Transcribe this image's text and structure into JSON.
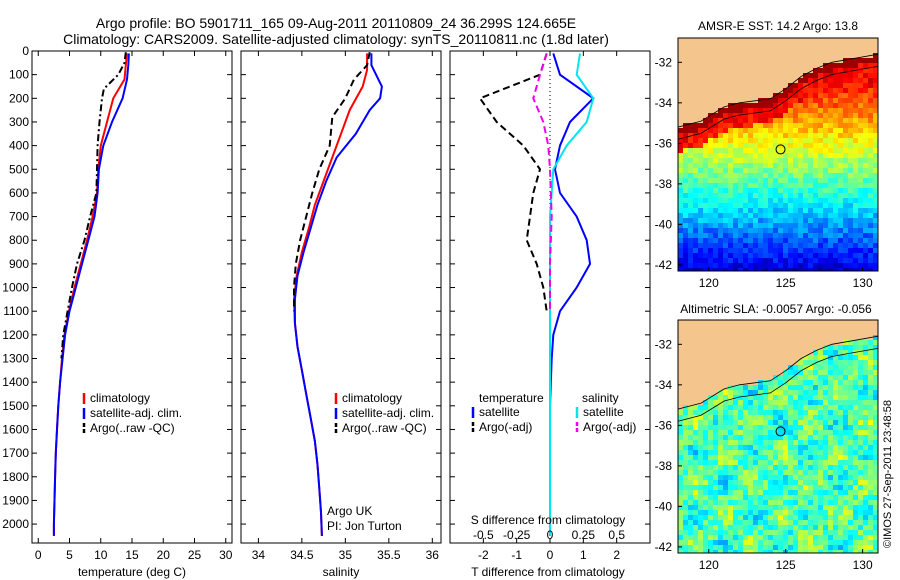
{
  "header": {
    "line1": "Argo profile: BO 5901711_165 09-Aug-2011 20110809_24 36.299S 124.665E",
    "line2": "Climatology: CARS2009. Satellite-adjusted climatology: synTS_20110811.nc (1.8d later)"
  },
  "colors": {
    "climatology": "#ff0000",
    "satellite": "#0000ff",
    "argo": "#000000",
    "satellite_s": "#00e5ee",
    "argo_s": "#ee00ee",
    "land": "#f5c58e"
  },
  "chart_data": [
    {
      "type": "line",
      "panel": "temperature",
      "xlabel": "temperature (deg C)",
      "ylabel": "",
      "xlim": [
        -1,
        31
      ],
      "ylim": [
        2080,
        0
      ],
      "x_ticks": [
        "0",
        "5",
        "10",
        "15",
        "20",
        "25",
        "30"
      ],
      "y_ticks": [
        "0",
        "100",
        "200",
        "300",
        "400",
        "500",
        "600",
        "700",
        "800",
        "900",
        "1000",
        "1100",
        "1200",
        "1300",
        "1400",
        "1500",
        "1600",
        "1700",
        "1800",
        "1900",
        "2000"
      ],
      "legend": [
        "climatology",
        "satellite-adj. clim.",
        "Argo(..raw -QC)"
      ],
      "legend_placement": "lower-center",
      "series": [
        {
          "name": "climatology",
          "style": "solid",
          "color": "#ff0000",
          "points": [
            [
              14.2,
              10
            ],
            [
              14.0,
              60
            ],
            [
              13.8,
              120
            ],
            [
              12.0,
              200
            ],
            [
              11.0,
              300
            ],
            [
              10.0,
              400
            ],
            [
              9.6,
              500
            ],
            [
              9.4,
              600
            ],
            [
              8.7,
              700
            ],
            [
              7.8,
              800
            ],
            [
              6.8,
              900
            ],
            [
              5.8,
              1000
            ],
            [
              4.9,
              1100
            ],
            [
              4.2,
              1200
            ],
            [
              3.8,
              1300
            ],
            [
              3.5,
              1400
            ],
            [
              3.2,
              1500
            ],
            [
              3.0,
              1600
            ],
            [
              2.8,
              1700
            ],
            [
              2.7,
              1800
            ],
            [
              2.6,
              1900
            ],
            [
              2.5,
              2000
            ],
            [
              2.5,
              2050
            ]
          ]
        },
        {
          "name": "satellite-adj. clim.",
          "style": "solid",
          "color": "#0000ff",
          "points": [
            [
              14.5,
              10
            ],
            [
              14.4,
              60
            ],
            [
              14.2,
              120
            ],
            [
              13.5,
              200
            ],
            [
              11.8,
              300
            ],
            [
              10.4,
              400
            ],
            [
              9.7,
              500
            ],
            [
              9.5,
              600
            ],
            [
              9.0,
              700
            ],
            [
              8.0,
              800
            ],
            [
              7.0,
              900
            ],
            [
              6.0,
              1000
            ],
            [
              5.0,
              1100
            ],
            [
              4.3,
              1200
            ],
            [
              3.9,
              1300
            ],
            [
              3.5,
              1400
            ],
            [
              3.2,
              1500
            ],
            [
              3.0,
              1600
            ],
            [
              2.8,
              1700
            ],
            [
              2.7,
              1800
            ],
            [
              2.6,
              1900
            ],
            [
              2.5,
              2000
            ],
            [
              2.5,
              2050
            ]
          ]
        },
        {
          "name": "Argo(..raw -QC)",
          "style": "dashdot",
          "color": "#000000",
          "points": [
            [
              14.0,
              5
            ],
            [
              13.8,
              50
            ],
            [
              12.8,
              100
            ],
            [
              10.5,
              160
            ],
            [
              10.2,
              200
            ],
            [
              9.8,
              300
            ],
            [
              9.5,
              400
            ],
            [
              9.4,
              500
            ],
            [
              9.3,
              600
            ],
            [
              8.3,
              700
            ],
            [
              7.4,
              800
            ],
            [
              6.2,
              900
            ],
            [
              5.4,
              1000
            ],
            [
              4.7,
              1100
            ],
            [
              4.0,
              1200
            ],
            [
              3.7,
              1300
            ]
          ]
        }
      ]
    },
    {
      "type": "line",
      "panel": "salinity",
      "xlabel": "salinity",
      "ylabel": "",
      "xlim": [
        33.8,
        36.1
      ],
      "ylim": [
        2080,
        0
      ],
      "x_ticks": [
        "34",
        "34.5",
        "35",
        "35.5",
        "36"
      ],
      "legend": [
        "climatology",
        "satellite-adj. clim.",
        "Argo(..raw -QC)"
      ],
      "legend_placement": "lower-center",
      "annotation": [
        "Argo UK",
        "PI: Jon Turton"
      ],
      "series": [
        {
          "name": "climatology",
          "style": "solid",
          "color": "#ff0000",
          "points": [
            [
              35.25,
              10
            ],
            [
              35.25,
              80
            ],
            [
              35.2,
              150
            ],
            [
              35.05,
              250
            ],
            [
              34.95,
              350
            ],
            [
              34.85,
              450
            ],
            [
              34.75,
              550
            ],
            [
              34.65,
              650
            ],
            [
              34.58,
              750
            ],
            [
              34.5,
              850
            ],
            [
              34.44,
              950
            ],
            [
              34.41,
              1050
            ],
            [
              34.42,
              1150
            ],
            [
              34.45,
              1250
            ],
            [
              34.5,
              1350
            ],
            [
              34.55,
              1450
            ],
            [
              34.6,
              1550
            ],
            [
              34.65,
              1650
            ],
            [
              34.68,
              1750
            ],
            [
              34.7,
              1850
            ],
            [
              34.72,
              1950
            ],
            [
              34.73,
              2050
            ]
          ]
        },
        {
          "name": "satellite-adj. clim.",
          "style": "solid",
          "color": "#0000ff",
          "points": [
            [
              35.3,
              10
            ],
            [
              35.3,
              60
            ],
            [
              35.42,
              150
            ],
            [
              35.4,
              200
            ],
            [
              35.28,
              250
            ],
            [
              35.12,
              350
            ],
            [
              34.9,
              450
            ],
            [
              34.78,
              550
            ],
            [
              34.68,
              650
            ],
            [
              34.6,
              750
            ],
            [
              34.52,
              850
            ],
            [
              34.45,
              950
            ],
            [
              34.42,
              1050
            ],
            [
              34.42,
              1150
            ],
            [
              34.45,
              1250
            ],
            [
              34.5,
              1350
            ],
            [
              34.55,
              1450
            ],
            [
              34.6,
              1550
            ],
            [
              34.65,
              1650
            ],
            [
              34.68,
              1750
            ],
            [
              34.7,
              1850
            ],
            [
              34.72,
              1950
            ],
            [
              34.73,
              2050
            ]
          ]
        },
        {
          "name": "Argo(..raw -QC)",
          "style": "dashed",
          "color": "#000000",
          "points": [
            [
              35.28,
              5
            ],
            [
              35.25,
              60
            ],
            [
              35.1,
              120
            ],
            [
              35.0,
              200
            ],
            [
              34.85,
              280
            ],
            [
              34.82,
              400
            ],
            [
              34.7,
              500
            ],
            [
              34.62,
              600
            ],
            [
              34.55,
              700
            ],
            [
              34.48,
              800
            ],
            [
              34.43,
              900
            ],
            [
              34.41,
              1000
            ],
            [
              34.41,
              1100
            ]
          ]
        }
      ]
    },
    {
      "type": "line",
      "panel": "difference",
      "xlabel": "T difference from climatology",
      "top_label": "S difference from climatology",
      "xlim": [
        -3,
        3
      ],
      "ylim": [
        2080,
        0
      ],
      "x_ticks": [
        "-2",
        "-1",
        "0",
        "1",
        "2"
      ],
      "s_ticks": [
        "-0.5",
        "-0.25",
        "0",
        "0.25",
        "0.5"
      ],
      "legend_left_title": "temperature",
      "legend_right_title": "salinity",
      "legend": [
        "satellite",
        "Argo(-adj)",
        "satellite",
        "Argo(-adj)"
      ],
      "legend_placement": "lower-center",
      "series": [
        {
          "name": "temperature satellite",
          "style": "solid",
          "color": "#0000ff",
          "points": [
            [
              0.1,
              10
            ],
            [
              0.3,
              100
            ],
            [
              1.3,
              200
            ],
            [
              0.6,
              300
            ],
            [
              0.3,
              400
            ],
            [
              0.15,
              500
            ],
            [
              0.3,
              600
            ],
            [
              0.8,
              700
            ],
            [
              1.1,
              800
            ],
            [
              1.2,
              900
            ],
            [
              0.8,
              1000
            ],
            [
              0.3,
              1100
            ],
            [
              0.1,
              1200
            ],
            [
              0.05,
              1300
            ],
            [
              0,
              1500
            ],
            [
              0,
              2050
            ]
          ]
        },
        {
          "name": "temperature Argo(-adj)",
          "style": "dashed",
          "color": "#000000",
          "points": [
            [
              -0.1,
              10
            ],
            [
              -0.3,
              100
            ],
            [
              -2.1,
              200
            ],
            [
              -1.6,
              300
            ],
            [
              -0.8,
              400
            ],
            [
              -0.3,
              500
            ],
            [
              -0.5,
              600
            ],
            [
              -0.6,
              700
            ],
            [
              -0.7,
              800
            ],
            [
              -0.4,
              900
            ],
            [
              -0.2,
              1000
            ],
            [
              -0.1,
              1100
            ]
          ]
        },
        {
          "name": "salinity satellite",
          "style": "solid",
          "color": "#00e5ee",
          "points": [
            [
              0.9,
              10
            ],
            [
              0.8,
              100
            ],
            [
              1.3,
              200
            ],
            [
              1.1,
              300
            ],
            [
              0.5,
              400
            ],
            [
              0.1,
              500
            ],
            [
              0.05,
              600
            ],
            [
              0,
              700
            ],
            [
              0,
              2050
            ]
          ]
        },
        {
          "name": "salinity Argo(-adj)",
          "style": "dashed",
          "color": "#ee00ee",
          "points": [
            [
              -0.1,
              10
            ],
            [
              -0.3,
              100
            ],
            [
              -0.5,
              200
            ],
            [
              -0.2,
              300
            ],
            [
              -0.05,
              400
            ],
            [
              0,
              500
            ],
            [
              0.05,
              700
            ],
            [
              0,
              900
            ],
            [
              0,
              1100
            ]
          ]
        }
      ]
    },
    {
      "type": "heatmap",
      "panel": "AMSR-E SST",
      "title": "AMSR-E SST: 14.2 Argo: 13.8",
      "x_ticks": [
        "120",
        "125",
        "130"
      ],
      "y_ticks": [
        "-32",
        "-34",
        "-36",
        "-38",
        "-40",
        "-42"
      ],
      "xlim": [
        118,
        131
      ],
      "ylim": [
        -42.3,
        -30.8
      ],
      "marker": {
        "x": 124.665,
        "y": -36.299
      }
    },
    {
      "type": "heatmap",
      "panel": "Altimetric SLA",
      "title": "Altimetric SLA: -0.0057 Argo: -0.056",
      "x_ticks": [
        "120",
        "125",
        "130"
      ],
      "y_ticks": [
        "-32",
        "-34",
        "-36",
        "-38",
        "-40",
        "-42"
      ],
      "xlim": [
        118,
        131
      ],
      "ylim": [
        -42.3,
        -30.8
      ],
      "marker": {
        "x": 124.665,
        "y": -36.299
      }
    }
  ],
  "footer": {
    "stamp": "©IMOS 27-Sep-2011 23:48:58"
  }
}
